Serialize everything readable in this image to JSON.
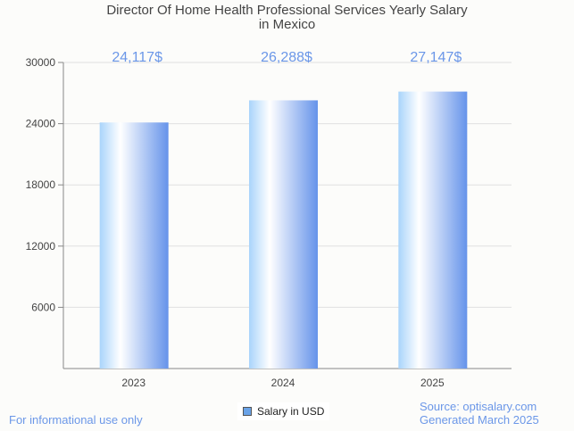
{
  "chart_data": {
    "type": "bar",
    "title": "Director Of Home Health Professional Services Yearly Salary",
    "title_line2": "in Mexico",
    "categories": [
      "2023",
      "2024",
      "2025"
    ],
    "values": [
      24117,
      26288,
      27147
    ],
    "data_labels": [
      "24,117$",
      "26,288$",
      "27,147$"
    ],
    "yticks": [
      6000,
      12000,
      18000,
      24000,
      30000
    ],
    "ylim": [
      0,
      30000
    ],
    "legend": "Salary in USD",
    "label_color": "#6b97e8"
  },
  "footer": {
    "left": "For informational use only",
    "source": "Source: optisalary.com",
    "generated": "Generated March 2025"
  }
}
